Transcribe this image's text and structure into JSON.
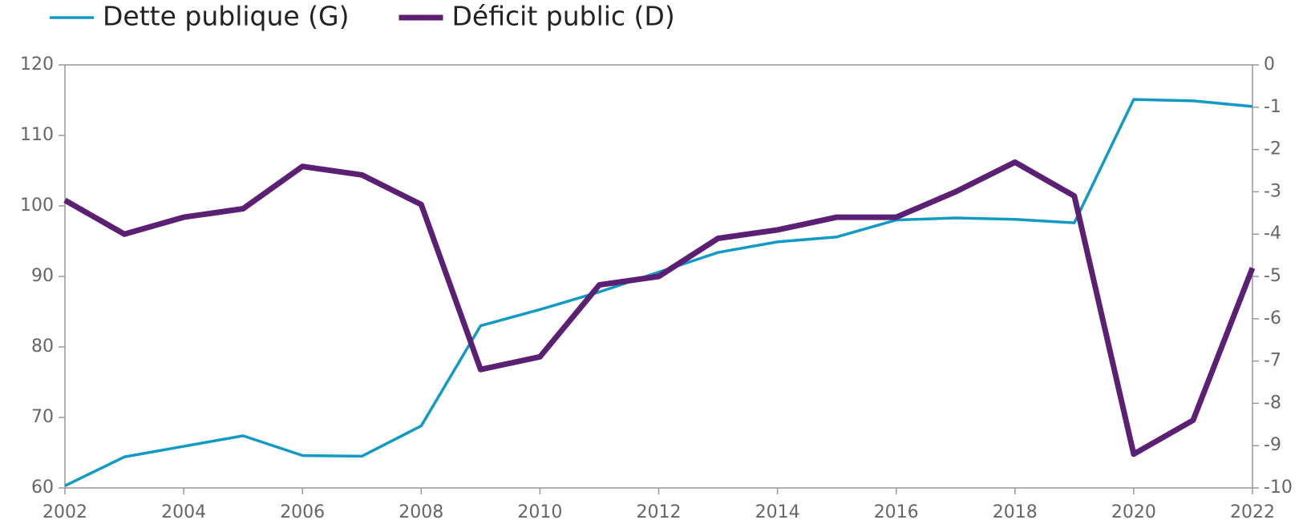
{
  "chart_data": {
    "type": "line",
    "x": [
      2002,
      2003,
      2004,
      2005,
      2006,
      2007,
      2008,
      2009,
      2010,
      2011,
      2012,
      2013,
      2014,
      2015,
      2016,
      2017,
      2018,
      2019,
      2020,
      2021,
      2022
    ],
    "series": [
      {
        "name": "Dette publique (G)",
        "color": "#129ac6",
        "values": [
          60.3,
          64.4,
          65.9,
          67.4,
          64.6,
          64.5,
          68.8,
          83.0,
          85.3,
          87.8,
          90.6,
          93.4,
          94.9,
          95.6,
          98.0,
          98.3,
          98.1,
          97.6,
          115.1,
          114.9,
          114.1
        ]
      },
      {
        "name": "Déficit public (D)",
        "color": "#5b1f74",
        "axis": "y2",
        "values": [
          -3.2,
          -4.0,
          -3.6,
          -3.4,
          -2.4,
          -2.6,
          -3.3,
          -7.2,
          -6.9,
          -5.2,
          -5.0,
          -4.1,
          -3.9,
          -3.6,
          -3.6,
          -3.0,
          -2.3,
          -3.1,
          -9.2,
          -8.4,
          -4.8
        ]
      }
    ],
    "xlim": [
      2002,
      2022
    ],
    "xticks": [
      2002,
      2004,
      2006,
      2008,
      2010,
      2012,
      2014,
      2016,
      2018,
      2020,
      2022
    ],
    "ylim": [
      60,
      120
    ],
    "yticks": [
      60,
      70,
      80,
      90,
      100,
      110,
      120
    ],
    "y2lim": [
      -10,
      0
    ],
    "y2ticks": [
      0,
      -1,
      -2,
      -3,
      -4,
      -5,
      -6,
      -7,
      -8,
      -9,
      -10
    ]
  }
}
